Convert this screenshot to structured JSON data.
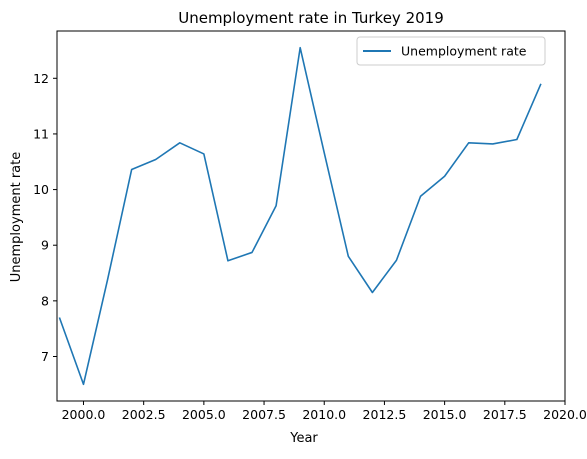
{
  "chart_data": {
    "type": "line",
    "title": "Unemployment rate in Turkey 2019",
    "xlabel": "Year",
    "ylabel": "Unemployment rate",
    "xlim": [
      1998.9,
      2020.0
    ],
    "ylim": [
      6.2,
      12.85
    ],
    "x_ticks": [
      2000.0,
      2002.5,
      2005.0,
      2007.5,
      2010.0,
      2012.5,
      2015.0,
      2017.5,
      2020.0
    ],
    "x_tick_labels": [
      "2000.0",
      "2002.5",
      "2005.0",
      "2007.5",
      "2010.0",
      "2012.5",
      "2015.0",
      "2017.5",
      "2020.0"
    ],
    "y_ticks": [
      7,
      8,
      9,
      10,
      11,
      12
    ],
    "y_tick_labels": [
      "7",
      "8",
      "9",
      "10",
      "11",
      "12"
    ],
    "grid": false,
    "legend_position": "top-right",
    "series": [
      {
        "name": "Unemployment rate",
        "color": "#1f77b4",
        "x": [
          1999,
          2000,
          2001,
          2002,
          2003,
          2004,
          2005,
          2006,
          2007,
          2008,
          2009,
          2010,
          2011,
          2012,
          2013,
          2014,
          2015,
          2016,
          2017,
          2018,
          2019
        ],
        "values": [
          7.7,
          6.5,
          8.38,
          10.36,
          10.54,
          10.84,
          10.64,
          8.72,
          8.87,
          9.71,
          12.55,
          10.66,
          8.8,
          8.15,
          8.73,
          9.88,
          10.24,
          10.84,
          10.82,
          10.9,
          11.9
        ]
      }
    ]
  }
}
